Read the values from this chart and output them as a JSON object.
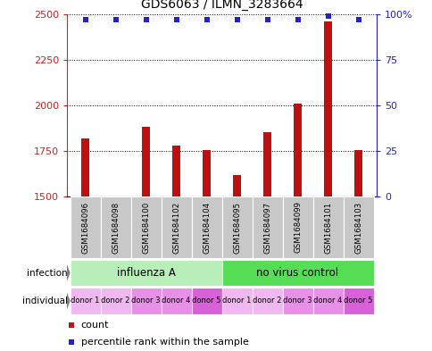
{
  "title": "GDS6063 / ILMN_3283664",
  "samples": [
    "GSM1684096",
    "GSM1684098",
    "GSM1684100",
    "GSM1684102",
    "GSM1684104",
    "GSM1684095",
    "GSM1684097",
    "GSM1684099",
    "GSM1684101",
    "GSM1684103"
  ],
  "counts": [
    1820,
    1500,
    1880,
    1780,
    1755,
    1620,
    1855,
    2010,
    2460,
    1755
  ],
  "percentile_ranks": [
    97,
    97,
    97,
    97,
    97,
    97,
    97,
    97,
    99,
    97
  ],
  "ylim": [
    1500,
    2500
  ],
  "yticks_left": [
    1500,
    1750,
    2000,
    2250,
    2500
  ],
  "yticks_right": [
    0,
    25,
    50,
    75,
    100
  ],
  "right_ylim": [
    0,
    100
  ],
  "infection_groups": [
    {
      "label": "influenza A",
      "start": 0,
      "end": 5,
      "color": "#B8EEB8"
    },
    {
      "label": "no virus control",
      "start": 5,
      "end": 10,
      "color": "#55DD55"
    }
  ],
  "individual_labels": [
    "donor 1",
    "donor 2",
    "donor 3",
    "donor 4",
    "donor 5",
    "donor 1",
    "donor 2",
    "donor 3",
    "donor 4",
    "donor 5"
  ],
  "individual_colors": [
    "#F0B8F0",
    "#F0B8F0",
    "#E890E8",
    "#E890E8",
    "#D860D8",
    "#F0B8F0",
    "#F0B8F0",
    "#E890E8",
    "#E890E8",
    "#D860D8"
  ],
  "bar_color": "#BB1111",
  "dot_color": "#2222CC",
  "sample_box_color": "#C8C8C8",
  "bar_width": 0.25
}
